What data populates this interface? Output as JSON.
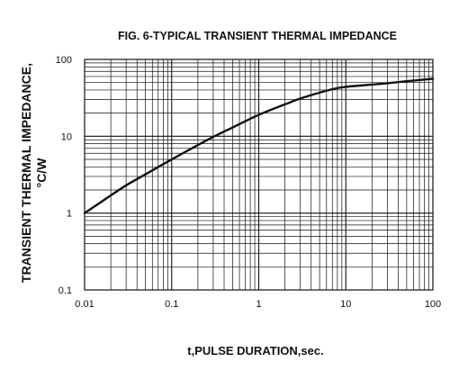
{
  "chart_data": {
    "type": "line",
    "title": "FIG. 6-TYPICAL TRANSIENT THERMAL IMPEDANCE",
    "xlabel": "t,PULSE DURATION,sec.",
    "ylabel_line1": "TRANSIENT THERMAL IMPEDANCE,",
    "ylabel_line2": "°C/W",
    "x_scale": "log",
    "y_scale": "log",
    "xlim": [
      0.01,
      100
    ],
    "ylim": [
      0.1,
      100
    ],
    "grid": true,
    "x_ticks": [
      {
        "value": 0.01,
        "label": "0.01"
      },
      {
        "value": 0.1,
        "label": "0.1"
      },
      {
        "value": 1,
        "label": "1"
      },
      {
        "value": 10,
        "label": "10"
      },
      {
        "value": 100,
        "label": "100"
      }
    ],
    "y_ticks": [
      {
        "value": 0.1,
        "label": "0.1"
      },
      {
        "value": 1,
        "label": "1"
      },
      {
        "value": 10,
        "label": "10"
      },
      {
        "value": 100,
        "label": "100"
      }
    ],
    "series": [
      {
        "x": [
          0.01,
          0.02,
          0.03,
          0.05,
          0.1,
          0.2,
          0.3,
          0.5,
          1,
          2,
          3,
          5,
          7,
          10,
          20,
          30,
          50,
          100
        ],
        "y": [
          1.0,
          1.7,
          2.3,
          3.2,
          5.0,
          7.7,
          9.8,
          13.0,
          19.0,
          26.0,
          31.0,
          37.0,
          41.0,
          44.0,
          47.0,
          49.0,
          52.0,
          56.0
        ]
      }
    ]
  }
}
